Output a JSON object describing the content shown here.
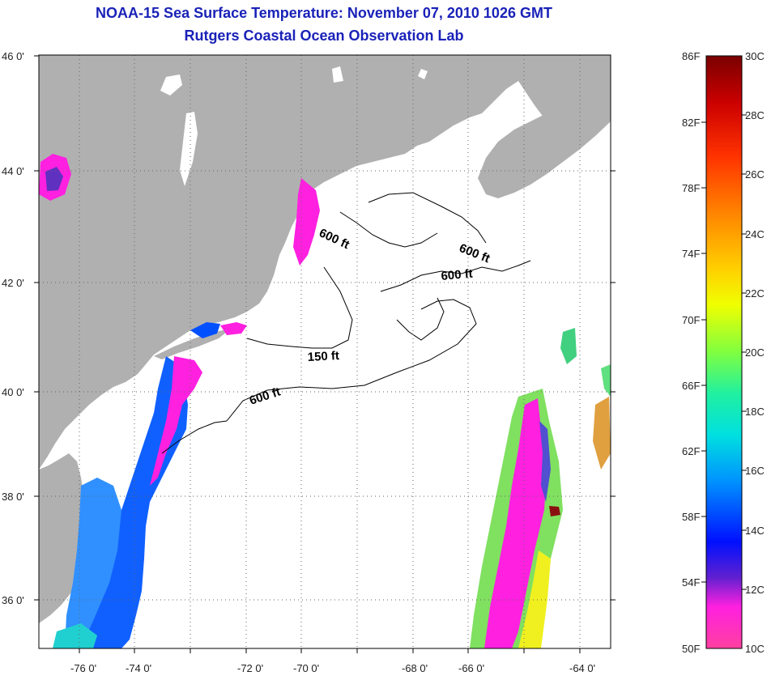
{
  "header": {
    "title": "NOAA-15 Sea Surface Temperature:  November 07, 2010 1026 GMT",
    "subtitle": "Rutgers Coastal Ocean Observation Lab"
  },
  "map": {
    "lat_ticks": [
      {
        "value": 46,
        "label": "46 0'"
      },
      {
        "value": 44,
        "label": "44 0'"
      },
      {
        "value": 42,
        "label": "42 0'"
      },
      {
        "value": 40,
        "label": "40 0'"
      },
      {
        "value": 38,
        "label": "38 0'"
      },
      {
        "value": 36,
        "label": "36 0'"
      }
    ],
    "lon_ticks": [
      {
        "value": -76,
        "label": "-76 0'"
      },
      {
        "value": -74,
        "label": "-74 0'"
      },
      {
        "value": -72,
        "label": "-72 0'"
      },
      {
        "value": -70,
        "label": "-70 0'"
      },
      {
        "value": -68,
        "label": "-68 0'"
      },
      {
        "value": -66,
        "label": "-66 0'"
      },
      {
        "value": -64,
        "label": "-64 0'"
      }
    ],
    "contour_labels": [
      "600 ft",
      "600 ft",
      "600 ft",
      "150 ft",
      "600 ft"
    ],
    "colors": {
      "land": "#b0b0b0",
      "ocean_no_data": "#ffffff",
      "grid": "#555555"
    }
  },
  "colorbar": {
    "fahrenheit_labels": [
      "86F",
      "82F",
      "78F",
      "74F",
      "70F",
      "66F",
      "62F",
      "58F",
      "54F",
      "50F"
    ],
    "celsius_labels": [
      "30C",
      "28C",
      "26C",
      "24C",
      "22C",
      "20C",
      "18C",
      "16C",
      "14C",
      "12C",
      "10C"
    ],
    "range_c": [
      10,
      30
    ],
    "range_f": [
      50,
      86
    ],
    "gradient_top_to_bottom": [
      "#7a0000",
      "#cc0000",
      "#ff3300",
      "#ff8800",
      "#ffd000",
      "#f0ff00",
      "#80ff40",
      "#20f0a0",
      "#00e0e0",
      "#0090ff",
      "#0010ff",
      "#6020d0",
      "#ff20e0",
      "#ff40a0"
    ]
  }
}
